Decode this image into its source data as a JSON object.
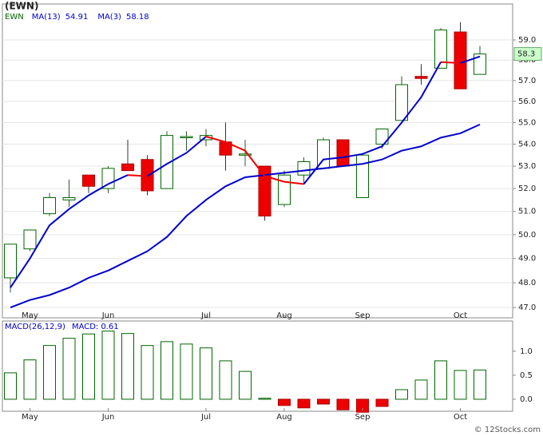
{
  "chart_data": [
    {
      "type": "candlestick",
      "title": "(EWN)",
      "symbol": "EWN",
      "log_scale": true,
      "grid": true,
      "categories": [
        null,
        "May",
        null,
        null,
        null,
        "Jun",
        null,
        null,
        null,
        null,
        "Jul",
        null,
        null,
        null,
        "Aug",
        null,
        null,
        null,
        "Sep",
        null,
        null,
        null,
        null,
        "Oct",
        null
      ],
      "open": [
        48.2,
        49.4,
        50.9,
        51.5,
        52.6,
        52.0,
        53.1,
        53.3,
        52.0,
        54.3,
        54.2,
        54.1,
        53.5,
        53.0,
        51.3,
        52.6,
        52.9,
        54.2,
        51.6,
        54.0,
        55.1,
        57.2,
        57.6,
        59.4,
        57.3
      ],
      "high": [
        49.6,
        50.2,
        51.8,
        52.4,
        52.6,
        53.0,
        54.2,
        53.5,
        54.6,
        54.6,
        54.7,
        55.0,
        54.2,
        53.0,
        52.8,
        53.4,
        54.3,
        54.2,
        53.5,
        54.7,
        57.2,
        57.8,
        59.6,
        59.9,
        58.7
      ],
      "low": [
        47.6,
        49.3,
        50.8,
        51.2,
        51.8,
        51.8,
        52.8,
        51.7,
        52.0,
        53.7,
        53.9,
        52.8,
        53.0,
        50.6,
        51.2,
        52.2,
        52.9,
        53.0,
        51.6,
        53.8,
        55.1,
        56.8,
        57.6,
        56.6,
        57.3
      ],
      "close": [
        49.6,
        50.2,
        51.6,
        51.6,
        52.1,
        52.9,
        52.8,
        51.9,
        54.4,
        54.35,
        54.4,
        53.5,
        53.55,
        50.8,
        52.6,
        53.2,
        54.2,
        53.0,
        53.5,
        54.7,
        56.8,
        57.1,
        59.5,
        56.6,
        58.3
      ],
      "up_color": "#006600",
      "down_color": "#ee0000",
      "series": [
        {
          "name": "MA(13)",
          "color": "#0000cc",
          "values": [
            47.0,
            47.3,
            47.5,
            47.8,
            48.2,
            48.5,
            48.9,
            49.3,
            49.9,
            50.8,
            51.5,
            52.1,
            52.5,
            52.6,
            52.7,
            52.8,
            52.9,
            53.0,
            53.1,
            53.3,
            53.7,
            53.9,
            54.3,
            54.5,
            54.91
          ]
        },
        {
          "name": "MA(3)",
          "color": "#0000cc",
          "down_color": "#ee0000",
          "values": [
            47.8,
            49.0,
            50.4,
            51.1,
            51.7,
            52.2,
            52.6,
            52.55,
            53.1,
            53.6,
            54.35,
            54.1,
            53.7,
            52.55,
            52.3,
            52.2,
            53.3,
            53.4,
            53.55,
            53.9,
            55.0,
            56.2,
            57.9,
            57.85,
            58.18
          ]
        }
      ],
      "ylim": [
        46.59,
        60.83
      ],
      "yticks": [
        {
          "value": 47,
          "label": "47.0"
        },
        {
          "value": 48,
          "label": "48.0"
        },
        {
          "value": 49,
          "label": "49.0"
        },
        {
          "value": 50,
          "label": "50.0"
        },
        {
          "value": 51,
          "label": "51.0"
        },
        {
          "value": 52,
          "label": "52.0"
        },
        {
          "value": 53,
          "label": "53.0"
        },
        {
          "value": 54,
          "label": "54.0"
        },
        {
          "value": 55,
          "label": "55.0"
        },
        {
          "value": 56,
          "label": "56.0"
        },
        {
          "value": 57,
          "label": "57.0"
        },
        {
          "value": 58,
          "label": "58.0"
        },
        {
          "value": 59,
          "label": "59.0"
        }
      ]
    },
    {
      "type": "bar",
      "title": "MACD(26,12,9)",
      "value_name": "MACD:",
      "grid": false,
      "categories": [
        null,
        "May",
        null,
        null,
        null,
        "Jun",
        null,
        null,
        null,
        null,
        "Jul",
        null,
        null,
        null,
        "Aug",
        null,
        null,
        null,
        "Sep",
        null,
        null,
        null,
        null,
        "Oct",
        null
      ],
      "values": [
        0.55,
        0.82,
        1.12,
        1.27,
        1.36,
        1.42,
        1.37,
        1.12,
        1.2,
        1.15,
        1.07,
        0.8,
        0.58,
        0.02,
        -0.13,
        -0.18,
        -0.1,
        -0.22,
        -0.27,
        -0.15,
        0.2,
        0.4,
        0.8,
        0.6,
        0.61
      ],
      "color": "#006600",
      "down_color": "#ee0000",
      "ylim": [
        -0.25,
        1.63
      ],
      "yticks": [
        {
          "value": 0,
          "label": "0.0"
        },
        {
          "value": 0.5,
          "label": "0.5"
        },
        {
          "value": 1,
          "label": "1.0"
        }
      ]
    }
  ],
  "source": "© 12Stocks.com"
}
